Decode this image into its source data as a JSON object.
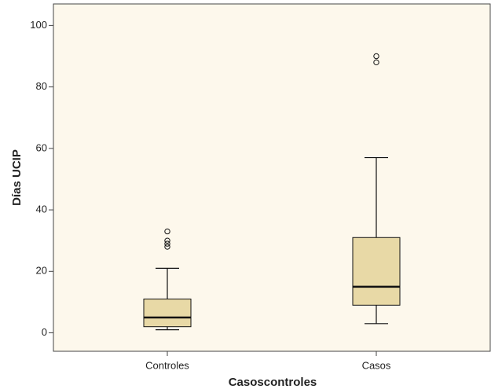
{
  "chart_data": {
    "type": "box",
    "x_label": "Casoscontroles",
    "y_label": "Días UCIP",
    "categories": [
      "Controles",
      "Casos"
    ],
    "boxes": [
      {
        "min": 1,
        "q1": 2,
        "median": 5,
        "q3": 11,
        "max": 21,
        "outliers": [
          33,
          30,
          29,
          28
        ]
      },
      {
        "min": 3,
        "q1": 9,
        "median": 15,
        "q3": 31,
        "max": 57,
        "outliers": [
          90,
          88
        ]
      }
    ],
    "color": "#e8d9a6",
    "background": "#fdf8ec",
    "ylim": [
      -6,
      107
    ],
    "yticks": [
      0,
      20,
      40,
      60,
      80,
      100
    ]
  }
}
